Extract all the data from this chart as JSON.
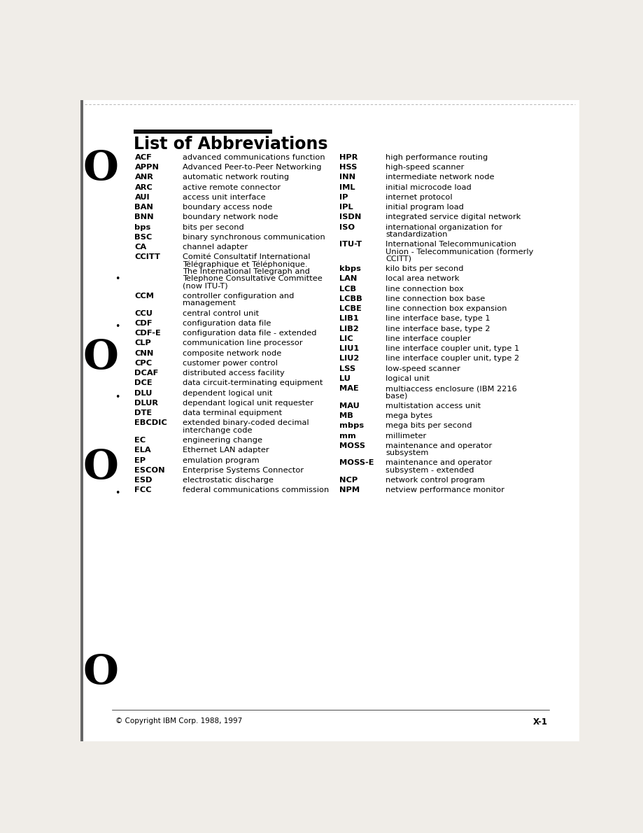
{
  "title": "List of Abbreviations",
  "page_bg": "#f0ede8",
  "content_bg": "#ffffff",
  "title_bar_color": "#1a1a1a",
  "footer_left": "© Copyright IBM Corp. 1988, 1997",
  "footer_right": "X-1",
  "left_entries": [
    [
      "ACF",
      "advanced communications function",
      1
    ],
    [
      "APPN",
      "Advanced Peer-to-Peer Networking",
      1
    ],
    [
      "ANR",
      "automatic network routing",
      1
    ],
    [
      "ARC",
      "active remote connector",
      1
    ],
    [
      "AUI",
      "access unit interface",
      1
    ],
    [
      "BAN",
      "boundary access node",
      1
    ],
    [
      "BNN",
      "boundary network node",
      1
    ],
    [
      "bps",
      "bits per second",
      1
    ],
    [
      "BSC",
      "binary synchronous communication",
      1
    ],
    [
      "CA",
      "channel adapter",
      1
    ],
    [
      "CCITT",
      "Comité Consultatif International\nTélégraphique et Téléphonique.\nThe International Telegraph and\nTelephone Consultative Committee\n(now ITU-T)",
      5
    ],
    [
      "CCM",
      "controller configuration and\nmanagement",
      2
    ],
    [
      "CCU",
      "central control unit",
      1
    ],
    [
      "CDF",
      "configuration data file",
      1
    ],
    [
      "CDF-E",
      "configuration data file - extended",
      1
    ],
    [
      "CLP",
      "communication line processor",
      1
    ],
    [
      "CNN",
      "composite network node",
      1
    ],
    [
      "CPC",
      "customer power control",
      1
    ],
    [
      "DCAF",
      "distributed access facility",
      1
    ],
    [
      "DCE",
      "data circuit-terminating equipment",
      1
    ],
    [
      "DLU",
      "dependent logical unit",
      1
    ],
    [
      "DLUR",
      "dependant logical unit requester",
      1
    ],
    [
      "DTE",
      "data terminal equipment",
      1
    ],
    [
      "EBCDIC",
      "extended binary-coded decimal\ninterchange code",
      2
    ],
    [
      "EC",
      "engineering change",
      1
    ],
    [
      "ELA",
      "Ethernet LAN adapter",
      1
    ],
    [
      "EP",
      "emulation program",
      1
    ],
    [
      "ESCON",
      "Enterprise Systems Connector",
      1
    ],
    [
      "ESD",
      "electrostatic discharge",
      1
    ],
    [
      "FCC",
      "federal communications commission",
      1
    ]
  ],
  "right_entries": [
    [
      "HPR",
      "high performance routing",
      1
    ],
    [
      "HSS",
      "high-speed scanner",
      1
    ],
    [
      "INN",
      "intermediate network node",
      1
    ],
    [
      "IML",
      "initial microcode load",
      1
    ],
    [
      "IP",
      "internet protocol",
      1
    ],
    [
      "IPL",
      "initial program load",
      1
    ],
    [
      "ISDN",
      "integrated service digital network",
      1
    ],
    [
      "ISO",
      "international organization for\nstandardization",
      2
    ],
    [
      "ITU-T",
      "International Telecommunication\nUnion - Telecommunication (formerly\nCCITT)",
      3
    ],
    [
      "kbps",
      "kilo bits per second",
      1
    ],
    [
      "LAN",
      "local area network",
      1
    ],
    [
      "LCB",
      "line connection box",
      1
    ],
    [
      "LCBB",
      "line connection box base",
      1
    ],
    [
      "LCBE",
      "line connection box expansion",
      1
    ],
    [
      "LIB1",
      "line interface base, type 1",
      1
    ],
    [
      "LIB2",
      "line interface base, type 2",
      1
    ],
    [
      "LIC",
      "line interface coupler",
      1
    ],
    [
      "LIU1",
      "line interface coupler unit, type 1",
      1
    ],
    [
      "LIU2",
      "line interface coupler unit, type 2",
      1
    ],
    [
      "LSS",
      "low-speed scanner",
      1
    ],
    [
      "LU",
      "logical unit",
      1
    ],
    [
      "MAE",
      "multiaccess enclosure (IBM 2216\nbase)",
      2
    ],
    [
      "MAU",
      "multistation access unit",
      1
    ],
    [
      "MB",
      "mega bytes",
      1
    ],
    [
      "mbps",
      "mega bits per second",
      1
    ],
    [
      "mm",
      "millimeter",
      1
    ],
    [
      "MOSS",
      "maintenance and operator\nsubsystem",
      2
    ],
    [
      "MOSS-E",
      "maintenance and operator\nsubsystem - extended",
      2
    ],
    [
      "NCP",
      "network control program",
      1
    ],
    [
      "NPM",
      "netview performance monitor",
      1
    ]
  ]
}
